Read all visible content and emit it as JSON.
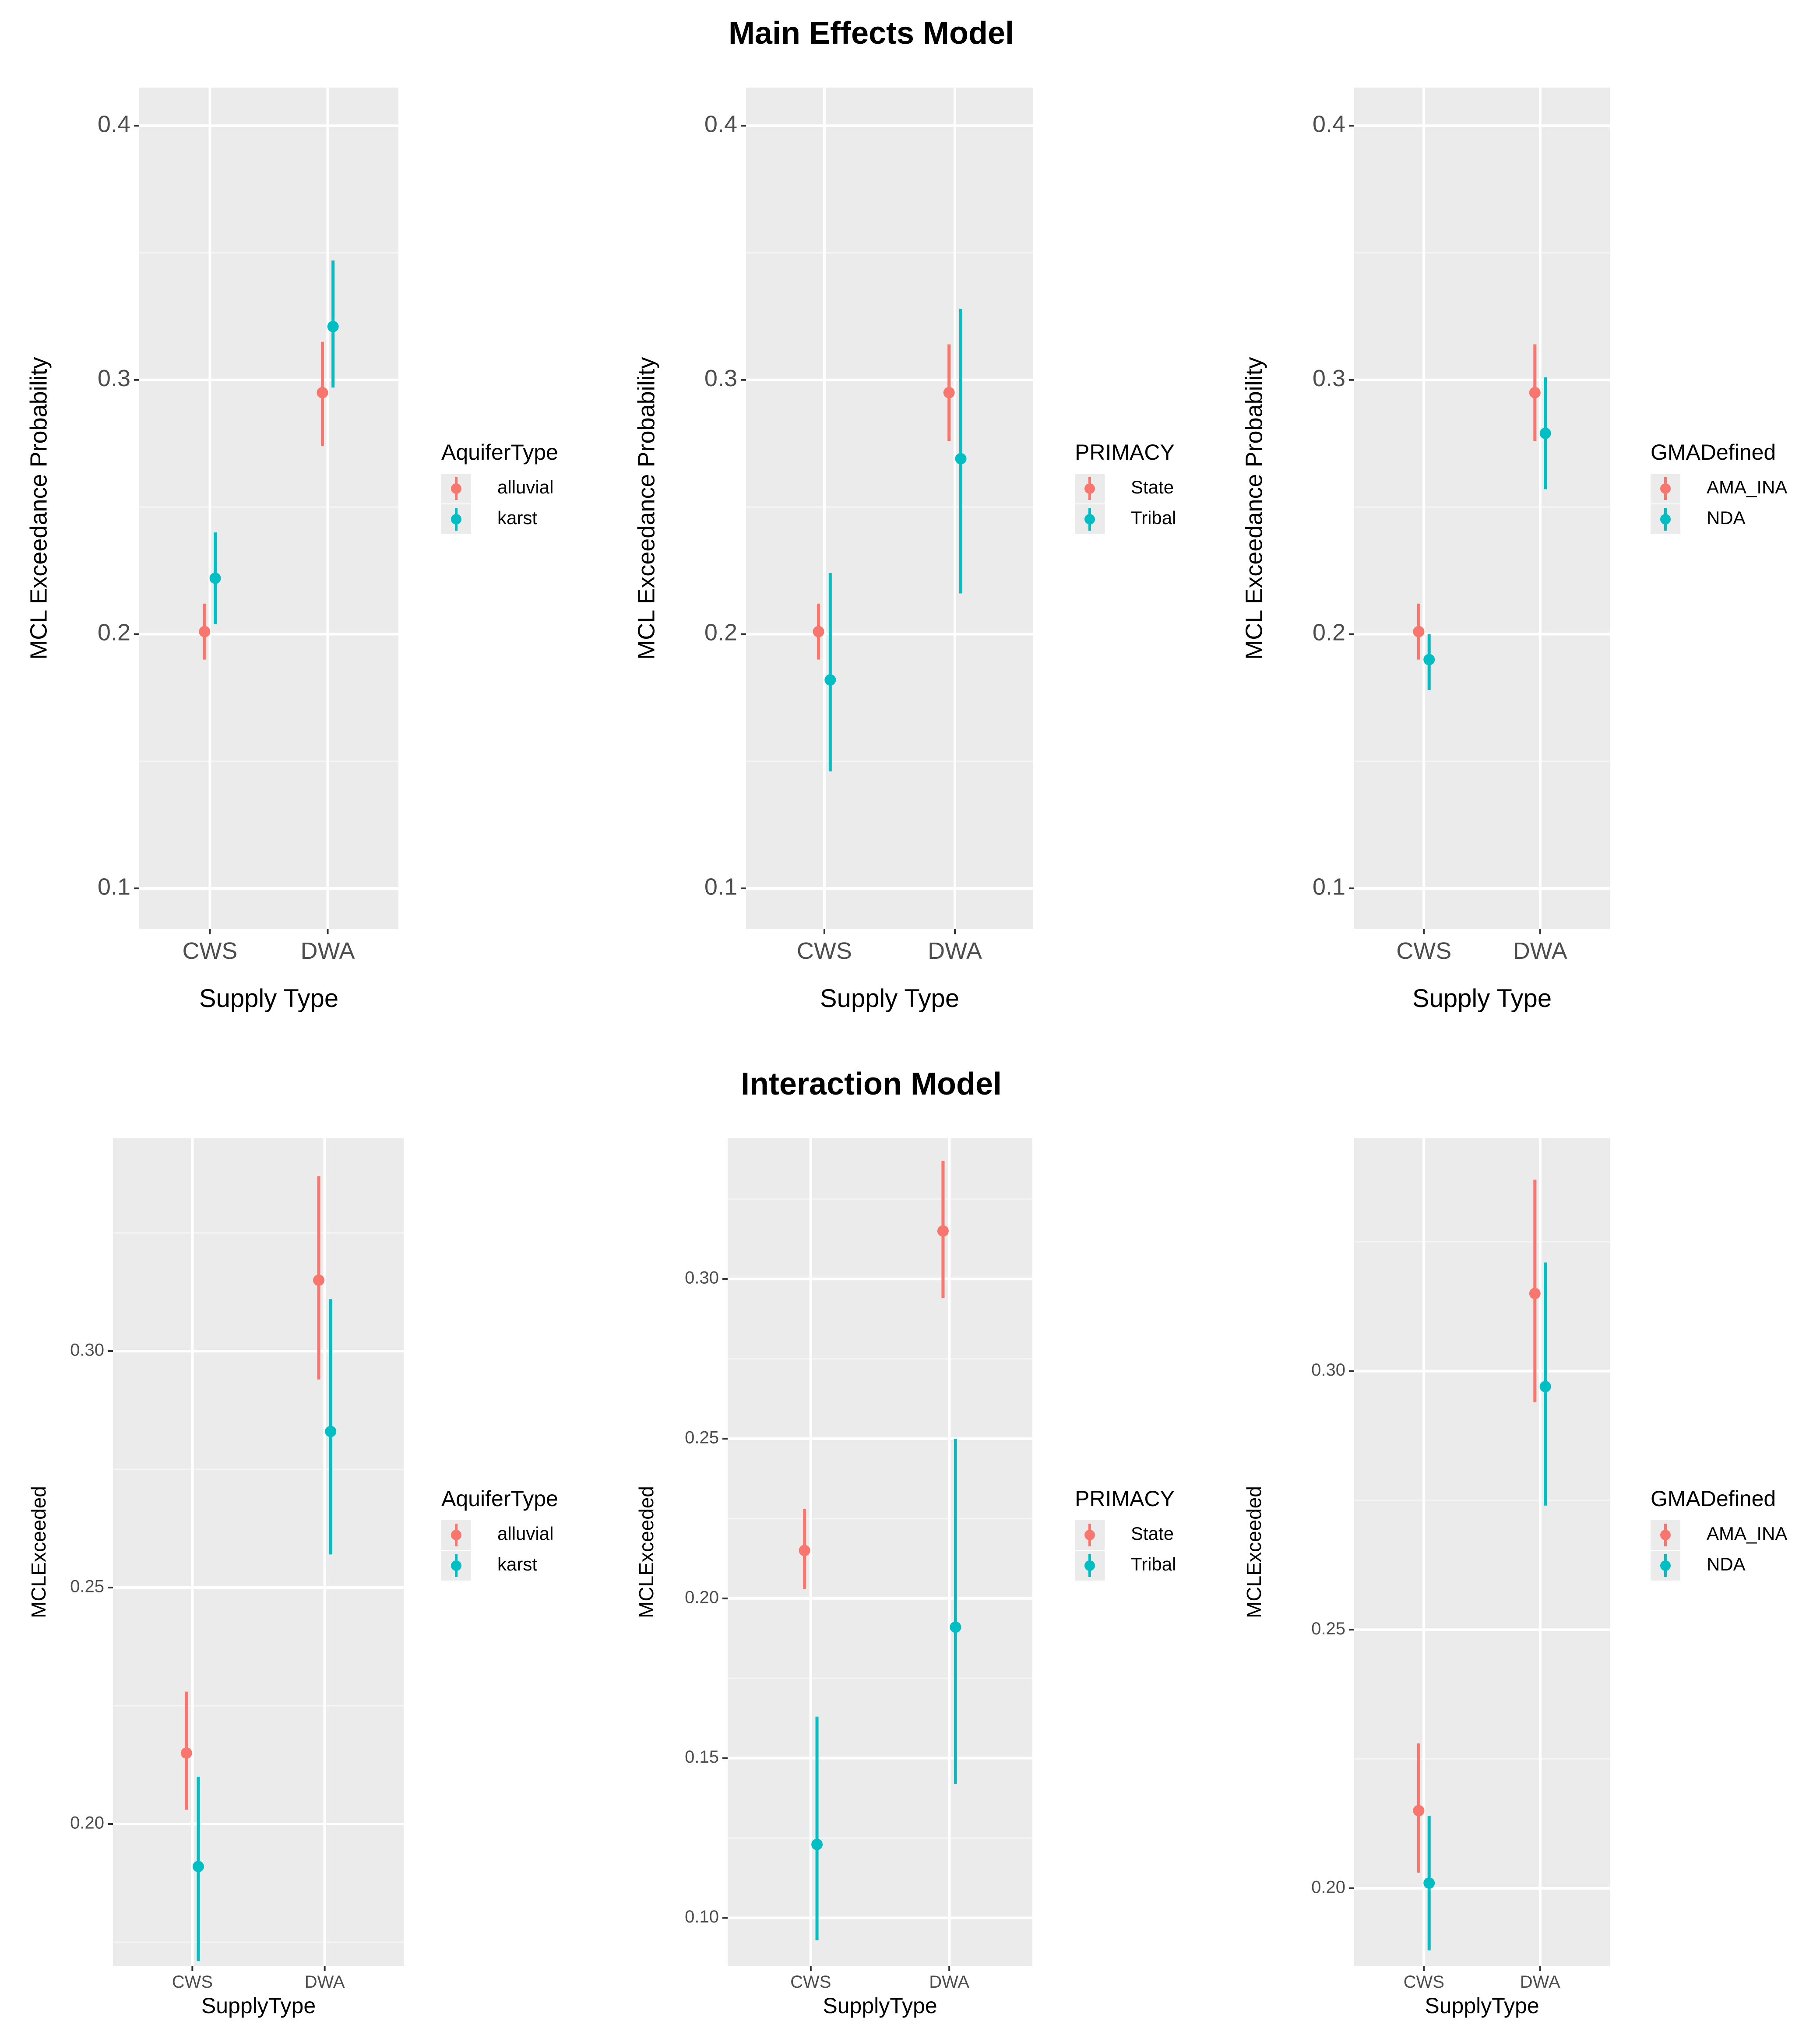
{
  "section_titles": {
    "main": "Main Effects Model",
    "interaction": "Interaction Model"
  },
  "colors": {
    "series1": "#F8766D",
    "series2": "#00BFC4",
    "panel_bg": "#EBEBEB",
    "grid_major": "#FFFFFF",
    "grid_minor": "#F5F5F5",
    "legend_key_bg": "#EBEBEB"
  },
  "chart_data": [
    {
      "type": "scatter",
      "section": "Main Effects Model",
      "xlabel": "Supply Type",
      "ylabel": "MCL Exceedance Probability",
      "categories": [
        "CWS",
        "DWA"
      ],
      "ylim": [
        0.084,
        0.415
      ],
      "yticks": [
        0.1,
        0.2,
        0.3,
        0.4
      ],
      "ytick_labels": [
        "0.1",
        "0.2",
        "0.3",
        "0.4"
      ],
      "legend_title": "AquiferType",
      "series": [
        {
          "name": "alluvial",
          "values": [
            0.201,
            0.295
          ],
          "lower": [
            0.19,
            0.274
          ],
          "upper": [
            0.212,
            0.315
          ]
        },
        {
          "name": "karst",
          "values": [
            0.222,
            0.321
          ],
          "lower": [
            0.204,
            0.297
          ],
          "upper": [
            0.24,
            0.347
          ]
        }
      ]
    },
    {
      "type": "scatter",
      "section": "Main Effects Model",
      "xlabel": "Supply Type",
      "ylabel": "MCL Exceedance Probability",
      "categories": [
        "CWS",
        "DWA"
      ],
      "ylim": [
        0.084,
        0.415
      ],
      "yticks": [
        0.1,
        0.2,
        0.3,
        0.4
      ],
      "ytick_labels": [
        "0.1",
        "0.2",
        "0.3",
        "0.4"
      ],
      "legend_title": "PRIMACY",
      "series": [
        {
          "name": "State",
          "values": [
            0.201,
            0.295
          ],
          "lower": [
            0.19,
            0.276
          ],
          "upper": [
            0.212,
            0.314
          ]
        },
        {
          "name": "Tribal",
          "values": [
            0.182,
            0.269
          ],
          "lower": [
            0.146,
            0.216
          ],
          "upper": [
            0.224,
            0.328
          ]
        }
      ]
    },
    {
      "type": "scatter",
      "section": "Main Effects Model",
      "xlabel": "Supply Type",
      "ylabel": "MCL Exceedance Probability",
      "categories": [
        "CWS",
        "DWA"
      ],
      "ylim": [
        0.084,
        0.415
      ],
      "yticks": [
        0.1,
        0.2,
        0.3,
        0.4
      ],
      "ytick_labels": [
        "0.1",
        "0.2",
        "0.3",
        "0.4"
      ],
      "legend_title": "GMADefined",
      "series": [
        {
          "name": "AMA_INA",
          "values": [
            0.201,
            0.295
          ],
          "lower": [
            0.19,
            0.276
          ],
          "upper": [
            0.212,
            0.314
          ]
        },
        {
          "name": "NDA",
          "values": [
            0.19,
            0.279
          ],
          "lower": [
            0.178,
            0.257
          ],
          "upper": [
            0.2,
            0.301
          ]
        }
      ]
    },
    {
      "type": "scatter",
      "section": "Interaction Model",
      "xlabel": "SupplyType",
      "ylabel": "MCLExceeded",
      "categories": [
        "CWS",
        "DWA"
      ],
      "ylim": [
        0.17,
        0.345
      ],
      "yticks": [
        0.2,
        0.25,
        0.3
      ],
      "ytick_labels": [
        "0.20",
        "0.25",
        "0.30"
      ],
      "legend_title": "AquiferType",
      "series": [
        {
          "name": "alluvial",
          "values": [
            0.215,
            0.315
          ],
          "lower": [
            0.203,
            0.294
          ],
          "upper": [
            0.228,
            0.337
          ]
        },
        {
          "name": "karst",
          "values": [
            0.191,
            0.283
          ],
          "lower": [
            0.171,
            0.257
          ],
          "upper": [
            0.21,
            0.311
          ]
        }
      ]
    },
    {
      "type": "scatter",
      "section": "Interaction Model",
      "xlabel": "SupplyType",
      "ylabel": "MCLExceeded",
      "categories": [
        "CWS",
        "DWA"
      ],
      "ylim": [
        0.085,
        0.344
      ],
      "yticks": [
        0.1,
        0.15,
        0.2,
        0.25,
        0.3
      ],
      "ytick_labels": [
        "0.10",
        "0.15",
        "0.20",
        "0.25",
        "0.30"
      ],
      "legend_title": "PRIMACY",
      "series": [
        {
          "name": "State",
          "values": [
            0.215,
            0.315
          ],
          "lower": [
            0.203,
            0.294
          ],
          "upper": [
            0.228,
            0.337
          ]
        },
        {
          "name": "Tribal",
          "values": [
            0.123,
            0.191
          ],
          "lower": [
            0.093,
            0.142
          ],
          "upper": [
            0.163,
            0.25
          ]
        }
      ]
    },
    {
      "type": "scatter",
      "section": "Interaction Model",
      "xlabel": "SupplyType",
      "ylabel": "MCLExceeded",
      "categories": [
        "CWS",
        "DWA"
      ],
      "ylim": [
        0.185,
        0.345
      ],
      "yticks": [
        0.2,
        0.25,
        0.3
      ],
      "ytick_labels": [
        "0.20",
        "0.25",
        "0.30"
      ],
      "legend_title": "GMADefined",
      "series": [
        {
          "name": "AMA_INA",
          "values": [
            0.215,
            0.315
          ],
          "lower": [
            0.203,
            0.294
          ],
          "upper": [
            0.228,
            0.337
          ]
        },
        {
          "name": "NDA",
          "values": [
            0.201,
            0.297
          ],
          "lower": [
            0.188,
            0.274
          ],
          "upper": [
            0.214,
            0.321
          ]
        }
      ]
    }
  ]
}
